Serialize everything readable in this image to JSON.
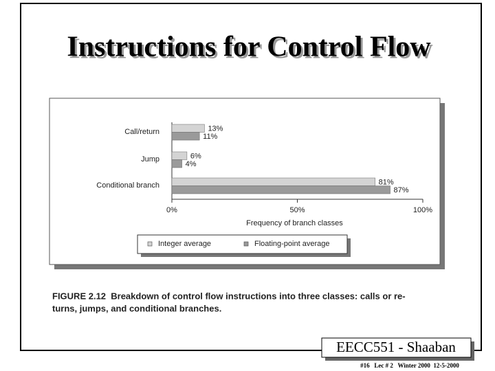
{
  "slide": {
    "title": "Instructions for Control Flow",
    "caption_lines": [
      "FIGURE 2.12  Breakdown of control flow instructions into three classes: calls or re-",
      "turns, jumps, and conditional branches."
    ],
    "footer_box": "EECC551 - Shaaban",
    "footer_note": "#16   Lec # 2   Winter 2000  12-5-2000"
  },
  "chart_data": {
    "type": "hbar",
    "categories": [
      "Call/return",
      "Jump",
      "Conditional branch"
    ],
    "series": [
      {
        "name": "Integer average",
        "color": "#d4d4d4",
        "values": [
          13,
          6,
          81
        ],
        "value_labels": [
          "13%",
          "6%",
          "81%"
        ]
      },
      {
        "name": "Floating-point average",
        "color": "#9a9a9a",
        "values": [
          11,
          4,
          87
        ],
        "value_labels": [
          "11%",
          "4%",
          "87%"
        ]
      }
    ],
    "xlabel": "Frequency of branch classes",
    "xlim": [
      0,
      100
    ],
    "xticks": [
      {
        "value": 0,
        "label": "0%"
      },
      {
        "value": 50,
        "label": "50%"
      },
      {
        "value": 100,
        "label": "100%"
      }
    ]
  }
}
